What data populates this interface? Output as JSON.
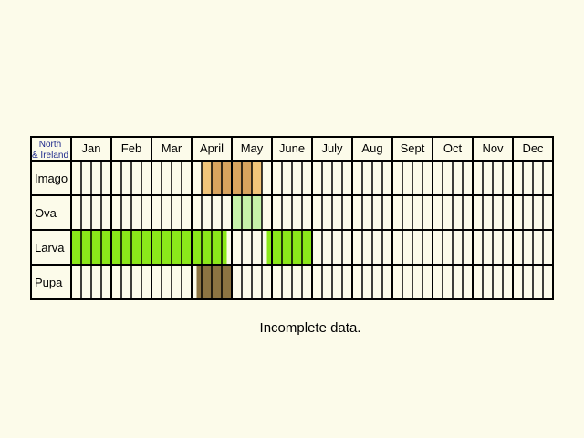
{
  "chart_data": {
    "type": "table",
    "title": "",
    "region_label": [
      "North",
      "& Ireland"
    ],
    "months": [
      "Jan",
      "Feb",
      "Mar",
      "April",
      "May",
      "June",
      "July",
      "Aug",
      "Sept",
      "Oct",
      "Nov",
      "Dec"
    ],
    "weeks_per_month": 4,
    "stages": [
      {
        "name": "Imago",
        "spans": [
          {
            "from_week": 13,
            "to_week": 14,
            "color": "#f1c57a"
          },
          {
            "from_week": 14,
            "to_week": 18,
            "color": "#d9a45e"
          },
          {
            "from_week": 18,
            "to_week": 19,
            "color": "#f1c57a"
          }
        ]
      },
      {
        "name": "Ova",
        "spans": [
          {
            "from_week": 16,
            "to_week": 19,
            "color": "#c6f2a9"
          }
        ]
      },
      {
        "name": "Larva",
        "spans": [
          {
            "from_week": 0,
            "to_week": 15.5,
            "color": "#8be81a"
          },
          {
            "from_week": 19.5,
            "to_week": 24,
            "color": "#8be81a"
          }
        ]
      },
      {
        "name": "Pupa",
        "spans": [
          {
            "from_week": 12.5,
            "to_week": 16,
            "color": "#8c7442"
          }
        ]
      }
    ]
  },
  "footnote": "Incomplete data."
}
